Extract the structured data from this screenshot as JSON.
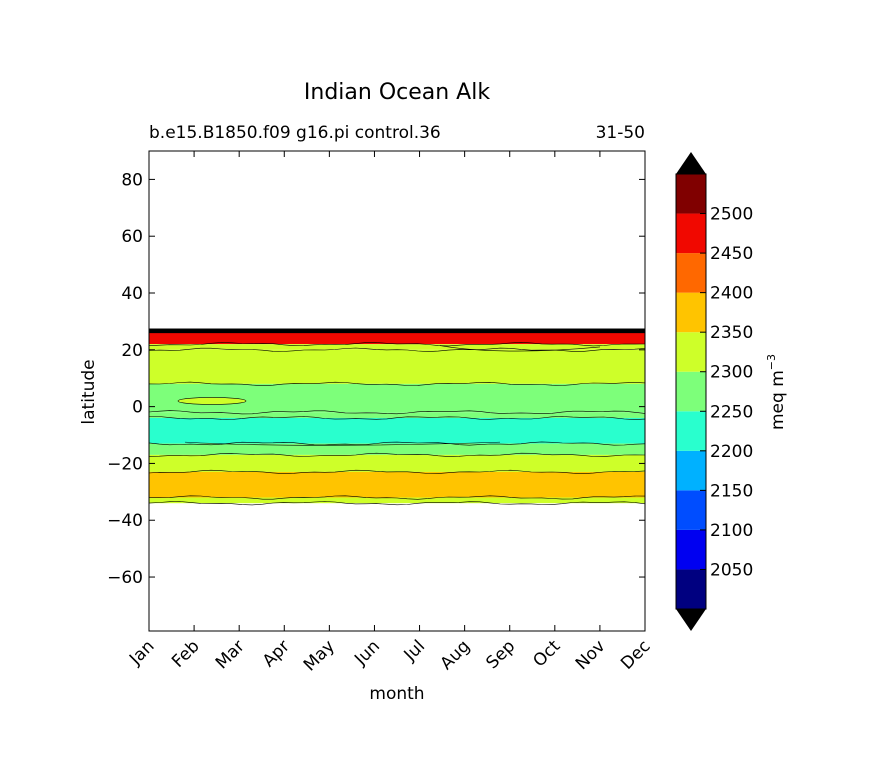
{
  "chart_data": {
    "type": "contourf",
    "title": "Indian Ocean Alk",
    "subtitle_left": "b.e15.B1850.f09 g16.pi control.36",
    "subtitle_right": "31-50",
    "xlabel": "month",
    "ylabel": "latitude",
    "x_ticks": [
      "Jan",
      "Feb",
      "Mar",
      "Apr",
      "May",
      "Jun",
      "Jul",
      "Aug",
      "Sep",
      "Oct",
      "Nov",
      "Dec"
    ],
    "y_ticks": [
      80,
      60,
      40,
      20,
      0,
      -20,
      -40,
      -60
    ],
    "ylim": [
      -79,
      90
    ],
    "colorbar": {
      "label": "meq m",
      "label_exponent": "−3",
      "extend": "both",
      "tick_labels": [
        "2050",
        "2100",
        "2150",
        "2200",
        "2250",
        "2300",
        "2350",
        "2400",
        "2450",
        "2500"
      ],
      "levels": [
        2000,
        2050,
        2100,
        2150,
        2200,
        2250,
        2300,
        2350,
        2400,
        2450,
        2500,
        2550
      ],
      "colors": [
        "#000080",
        "#0000f1",
        "#004dff",
        "#00b1ff",
        "#29ffce",
        "#7dff7a",
        "#ceff29",
        "#ffc400",
        "#ff6800",
        "#f10800",
        "#800000"
      ],
      "under_color": "#000000",
      "over_color": "#000000"
    },
    "bands": [
      {
        "lat_min": 26,
        "lat_max": 27.5,
        "value": 2600
      },
      {
        "lat_min": 22,
        "lat_max": 26,
        "value": 2470
      },
      {
        "lat_min": 20,
        "lat_max": 22,
        "value": 2320
      },
      {
        "lat_min": 8,
        "lat_max": 20,
        "value": 2320
      },
      {
        "lat_min": -2,
        "lat_max": 8,
        "value": 2270
      },
      {
        "lat_min": -4,
        "lat_max": -2,
        "value": 2270
      },
      {
        "lat_min": -13,
        "lat_max": -4,
        "value": 2230
      },
      {
        "lat_min": -17,
        "lat_max": -13,
        "value": 2270
      },
      {
        "lat_min": -23,
        "lat_max": -17,
        "value": 2320
      },
      {
        "lat_min": -32,
        "lat_max": -23,
        "value": 2370
      },
      {
        "lat_min": -34,
        "lat_max": -32,
        "value": 2320
      }
    ]
  }
}
